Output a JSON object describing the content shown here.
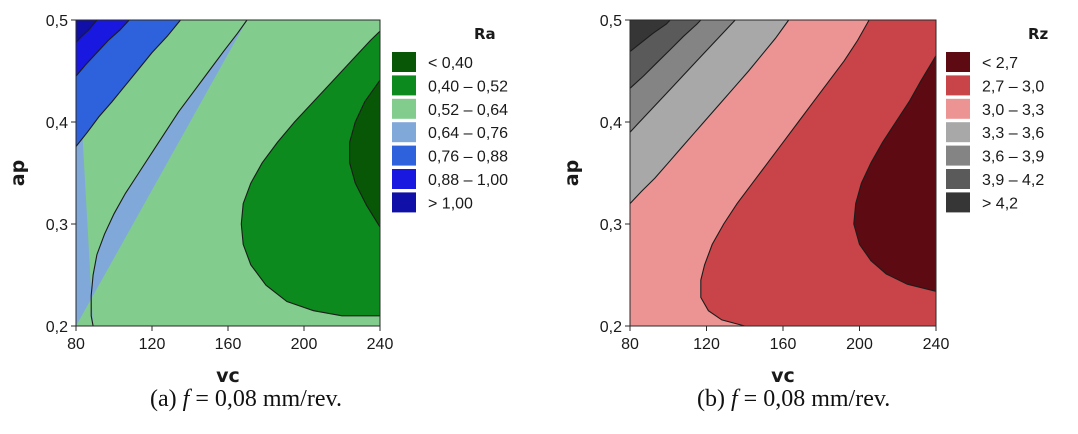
{
  "chart_data": [
    {
      "type": "contour",
      "panel": "a",
      "xlabel": "vc",
      "ylabel": "ap",
      "x_ticks": [
        "80",
        "120",
        "160",
        "200",
        "240"
      ],
      "y_ticks": [
        "0,2",
        "0,3",
        "0,4",
        "0,5"
      ],
      "xlim": [
        80,
        240
      ],
      "ylim": [
        0.2,
        0.5
      ],
      "legend_title": "Ra",
      "legend_position": "right",
      "levels": [
        {
          "label": "<  0,40",
          "color": "#075707"
        },
        {
          "label": "0,40  –  0,52",
          "color": "#0d8a1d"
        },
        {
          "label": "0,52  –  0,64",
          "color": "#82cc8d"
        },
        {
          "label": "0,64  –  0,76",
          "color": "#80a8d9"
        },
        {
          "label": "0,76  –  0,88",
          "color": "#2d62dc"
        },
        {
          "label": "0,88  –  1,00",
          "color": "#1818e0"
        },
        {
          "label": ">  1,00",
          "color": "#1010a8"
        }
      ],
      "contours": [
        {
          "level": 0.4,
          "points": [
            [
              240,
              0.297
            ],
            [
              233,
              0.318
            ],
            [
              227,
              0.34
            ],
            [
              224,
              0.36
            ],
            [
              224,
              0.38
            ],
            [
              227,
              0.4
            ],
            [
              232,
              0.42
            ],
            [
              240,
              0.441
            ]
          ]
        },
        {
          "level": 0.52,
          "points": [
            [
              240,
              0.21
            ],
            [
              220,
              0.21
            ],
            [
              205,
              0.215
            ],
            [
              191,
              0.224
            ],
            [
              180,
              0.24
            ],
            [
              172,
              0.26
            ],
            [
              168,
              0.28
            ],
            [
              167,
              0.3
            ],
            [
              168,
              0.32
            ],
            [
              172,
              0.34
            ],
            [
              178,
              0.36
            ],
            [
              186,
              0.38
            ],
            [
              195,
              0.4
            ],
            [
              205,
              0.42
            ],
            [
              215,
              0.44
            ],
            [
              225,
              0.46
            ],
            [
              235,
              0.48
            ],
            [
              240,
              0.489
            ]
          ]
        },
        {
          "level": 0.64,
          "points": [
            [
              89,
              0.2
            ],
            [
              88,
              0.21
            ],
            [
              88,
              0.23
            ],
            [
              89,
              0.25
            ],
            [
              91,
              0.27
            ],
            [
              95,
              0.29
            ],
            [
              100,
              0.31
            ],
            [
              106,
              0.33
            ],
            [
              113,
              0.35
            ],
            [
              120,
              0.37
            ],
            [
              127,
              0.39
            ],
            [
              134,
              0.41
            ],
            [
              142,
              0.43
            ],
            [
              150,
              0.45
            ],
            [
              158,
              0.47
            ],
            [
              165,
              0.487
            ],
            [
              170,
              0.5
            ]
          ]
        },
        {
          "level": 0.76,
          "points": [
            [
              80,
              0.376
            ],
            [
              86,
              0.39
            ],
            [
              92,
              0.405
            ],
            [
              99,
              0.42
            ],
            [
              106,
              0.436
            ],
            [
              113,
              0.452
            ],
            [
              120,
              0.468
            ],
            [
              128,
              0.484
            ],
            [
              135,
              0.5
            ]
          ]
        },
        {
          "level": 0.88,
          "points": [
            [
              80,
              0.445
            ],
            [
              85,
              0.456
            ],
            [
              91,
              0.468
            ],
            [
              97,
              0.48
            ],
            [
              103,
              0.49
            ],
            [
              108,
              0.5
            ]
          ]
        },
        {
          "level": 1.0,
          "points": [
            [
              80,
              0.478
            ],
            [
              83,
              0.484
            ],
            [
              87,
              0.491
            ],
            [
              91,
              0.5
            ]
          ]
        }
      ]
    },
    {
      "type": "contour",
      "panel": "b",
      "xlabel": "vc",
      "ylabel": "ap",
      "x_ticks": [
        "80",
        "120",
        "160",
        "200",
        "240"
      ],
      "y_ticks": [
        "0,2",
        "0,3",
        "0,4",
        "0,5"
      ],
      "xlim": [
        80,
        240
      ],
      "ylim": [
        0.2,
        0.5
      ],
      "legend_title": "Rz",
      "legend_position": "right",
      "levels": [
        {
          "label": "<  2,7",
          "color": "#5e0a12"
        },
        {
          "label": "2,7  –  3,0",
          "color": "#c84448"
        },
        {
          "label": "3,0  –  3,3",
          "color": "#ec9494"
        },
        {
          "label": "3,3  –  3,6",
          "color": "#a8a8a8"
        },
        {
          "label": "3,6  –  3,9",
          "color": "#848484"
        },
        {
          "label": "3,9  –  4,2",
          "color": "#5a5a5a"
        },
        {
          "label": ">  4,2",
          "color": "#363636"
        }
      ],
      "contours": [
        {
          "level": 2.7,
          "points": [
            [
              240,
              0.234
            ],
            [
              225,
              0.241
            ],
            [
              214,
              0.251
            ],
            [
              206,
              0.264
            ],
            [
              200,
              0.28
            ],
            [
              197,
              0.3
            ],
            [
              198,
              0.32
            ],
            [
              201,
              0.34
            ],
            [
              206,
              0.36
            ],
            [
              212,
              0.38
            ],
            [
              219,
              0.4
            ],
            [
              226,
              0.42
            ],
            [
              232,
              0.44
            ],
            [
              240,
              0.465
            ]
          ]
        },
        {
          "level": 3.0,
          "points": [
            [
              140,
              0.2
            ],
            [
              128,
              0.206
            ],
            [
              121,
              0.215
            ],
            [
              117,
              0.228
            ],
            [
              117,
              0.245
            ],
            [
              119,
              0.26
            ],
            [
              123,
              0.28
            ],
            [
              129,
              0.3
            ],
            [
              136,
              0.32
            ],
            [
              144,
              0.34
            ],
            [
              152,
              0.36
            ],
            [
              160,
              0.38
            ],
            [
              168,
              0.4
            ],
            [
              176,
              0.42
            ],
            [
              184,
              0.44
            ],
            [
              192,
              0.46
            ],
            [
              199,
              0.48
            ],
            [
              205,
              0.5
            ]
          ]
        },
        {
          "level": 3.3,
          "points": [
            [
              80,
              0.32
            ],
            [
              86,
              0.332
            ],
            [
              93,
              0.345
            ],
            [
              100,
              0.36
            ],
            [
              107,
              0.375
            ],
            [
              114,
              0.39
            ],
            [
              121,
              0.405
            ],
            [
              128,
              0.42
            ],
            [
              135,
              0.435
            ],
            [
              142,
              0.45
            ],
            [
              149,
              0.466
            ],
            [
              156,
              0.482
            ],
            [
              163,
              0.5
            ]
          ]
        },
        {
          "level": 3.6,
          "points": [
            [
              80,
              0.39
            ],
            [
              87,
              0.404
            ],
            [
              94,
              0.418
            ],
            [
              101,
              0.432
            ],
            [
              108,
              0.446
            ],
            [
              115,
              0.46
            ],
            [
              122,
              0.474
            ],
            [
              129,
              0.488
            ],
            [
              135,
              0.5
            ]
          ]
        },
        {
          "level": 3.9,
          "points": [
            [
              80,
              0.433
            ],
            [
              87,
              0.445
            ],
            [
              94,
              0.458
            ],
            [
              101,
              0.471
            ],
            [
              108,
              0.484
            ],
            [
              115,
              0.496
            ],
            [
              117,
              0.5
            ]
          ]
        },
        {
          "level": 4.2,
          "points": [
            [
              80,
              0.469
            ],
            [
              86,
              0.478
            ],
            [
              92,
              0.487
            ],
            [
              99,
              0.496
            ],
            [
              101,
              0.5
            ]
          ]
        }
      ]
    }
  ],
  "captions": [
    {
      "prefix": "(a) ",
      "symbol": "f",
      "rest": " = 0,08 mm/rev."
    },
    {
      "prefix": "(b) ",
      "symbol": "f",
      "rest": " = 0,08 mm/rev."
    }
  ]
}
